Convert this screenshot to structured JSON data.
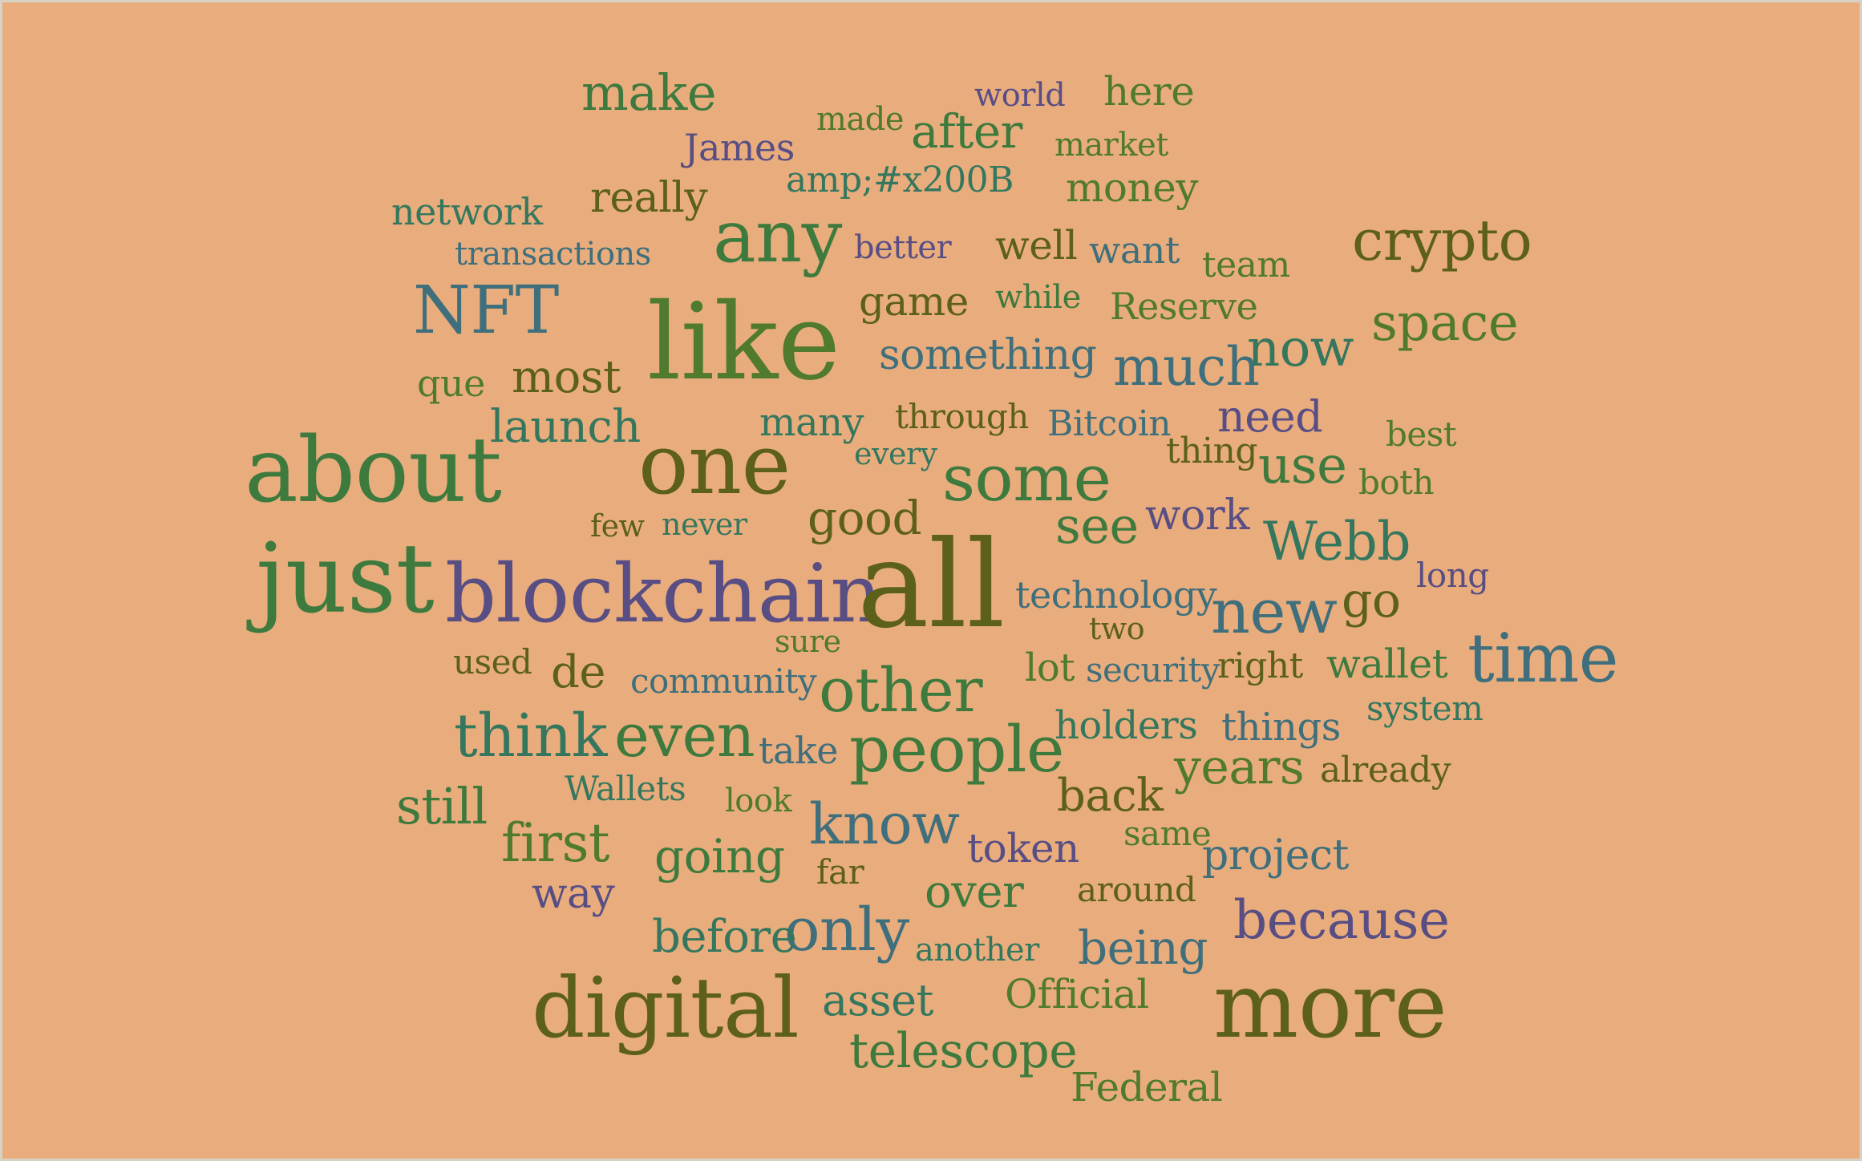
{
  "palette": {
    "background": "#E9AD7D",
    "green": "#3E7A3E",
    "olive": "#5C6019",
    "teal": "#35775E",
    "steel": "#3F6F7C",
    "purple": "#594E84",
    "leaf": "#507A2E"
  },
  "words": [
    "make",
    "world",
    "here",
    "made",
    "after",
    "James",
    "market",
    "amp;#x200B",
    "money",
    "network",
    "really",
    "any",
    "crypto",
    "transactions",
    "better",
    "well",
    "want",
    "team",
    "NFT",
    "like",
    "game",
    "while",
    "Reserve",
    "space",
    "something",
    "now",
    "que",
    "most",
    "much",
    "launch",
    "many",
    "through",
    "Bitcoin",
    "need",
    "best",
    "about",
    "one",
    "every",
    "thing",
    "use",
    "some",
    "both",
    "few",
    "never",
    "good",
    "see",
    "work",
    "Webb",
    "just",
    "blockchain",
    "all",
    "technology",
    "long",
    "go",
    "new",
    "two",
    "sure",
    "used",
    "de",
    "community",
    "other",
    "lot",
    "security",
    "right",
    "wallet",
    "time",
    "system",
    "think",
    "even",
    "take",
    "people",
    "holders",
    "things",
    "years",
    "already",
    "Wallets",
    "look",
    "still",
    "back",
    "know",
    "first",
    "going",
    "token",
    "same",
    "project",
    "far",
    "way",
    "around",
    "over",
    "only",
    "because",
    "before",
    "another",
    "being",
    "digital",
    "asset",
    "Official",
    "more",
    "telescope",
    "Federal"
  ]
}
